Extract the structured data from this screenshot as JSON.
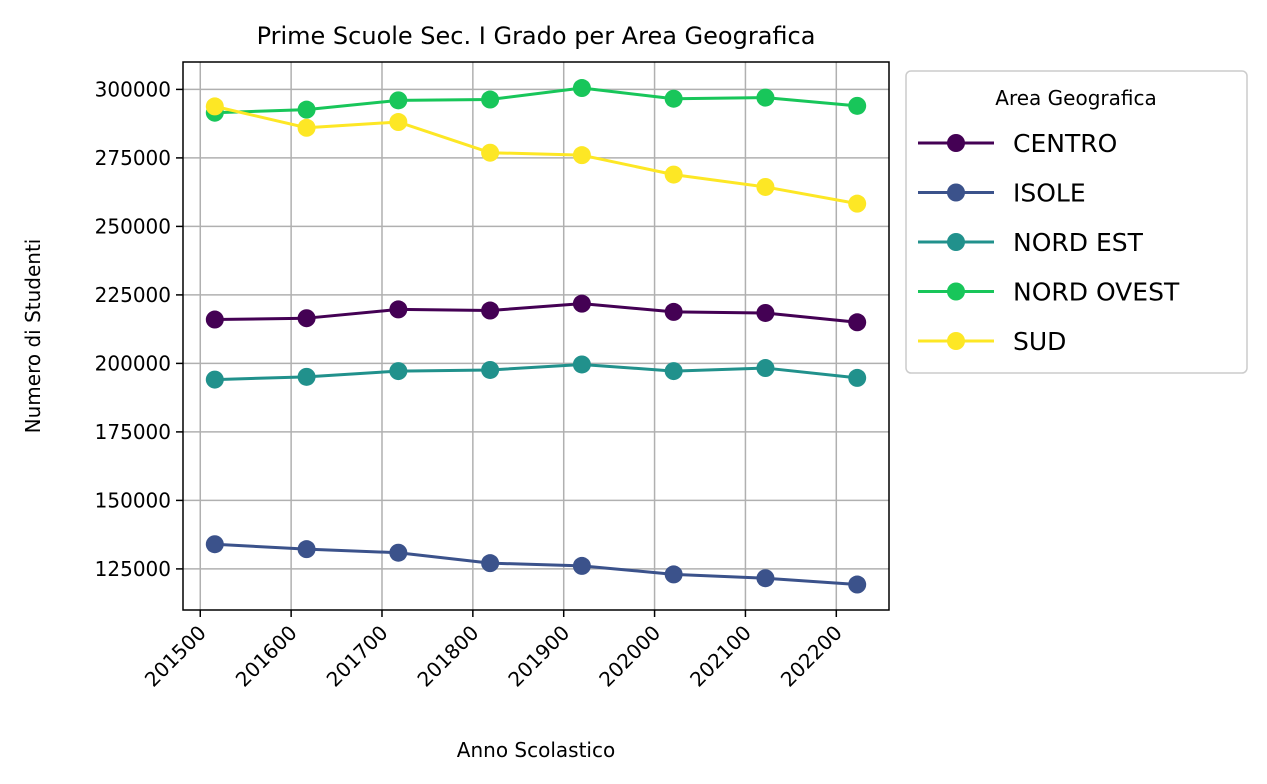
{
  "chart_data": {
    "type": "line",
    "title": "Prime Scuole Sec. I Grado per Area Geografica",
    "xlabel": "Anno Scolastico",
    "ylabel": "Numero di Studenti",
    "x": [
      201516,
      201617,
      201718,
      201819,
      201920,
      202021,
      202122,
      202223
    ],
    "x_tick_values": [
      201500,
      201600,
      201700,
      201800,
      201900,
      202000,
      202100,
      202200
    ],
    "x_tick_labels": [
      "201500",
      "201600",
      "201700",
      "201800",
      "201900",
      "202000",
      "202100",
      "202200"
    ],
    "xlim": [
      201481,
      202258
    ],
    "y_tick_values": [
      125000,
      150000,
      175000,
      200000,
      225000,
      250000,
      275000,
      300000
    ],
    "y_tick_labels": [
      "125000",
      "150000",
      "175000",
      "200000",
      "225000",
      "250000",
      "275000",
      "300000"
    ],
    "ylim": [
      110000,
      310000
    ],
    "grid": true,
    "legend": {
      "title": "Area Geografica",
      "placement": "outside-right-top"
    },
    "series": [
      {
        "name": "CENTRO",
        "color": "#440154",
        "values": [
          216000,
          216500,
          219700,
          219300,
          221800,
          218800,
          218400,
          215000
        ]
      },
      {
        "name": "ISOLE",
        "color": "#3b528b",
        "values": [
          134000,
          132200,
          130900,
          127100,
          126100,
          123000,
          121600,
          119300
        ]
      },
      {
        "name": "NORD EST",
        "color": "#21918c",
        "values": [
          194100,
          195100,
          197200,
          197600,
          199600,
          197200,
          198300,
          194700
        ]
      },
      {
        "name": "NORD OVEST",
        "color": "#18c65a",
        "values": [
          291500,
          292600,
          296000,
          296300,
          300500,
          296600,
          297000,
          294000
        ]
      },
      {
        "name": "SUD",
        "color": "#fde725",
        "values": [
          293800,
          286000,
          288100,
          276900,
          276000,
          268900,
          264400,
          258300
        ]
      }
    ]
  }
}
